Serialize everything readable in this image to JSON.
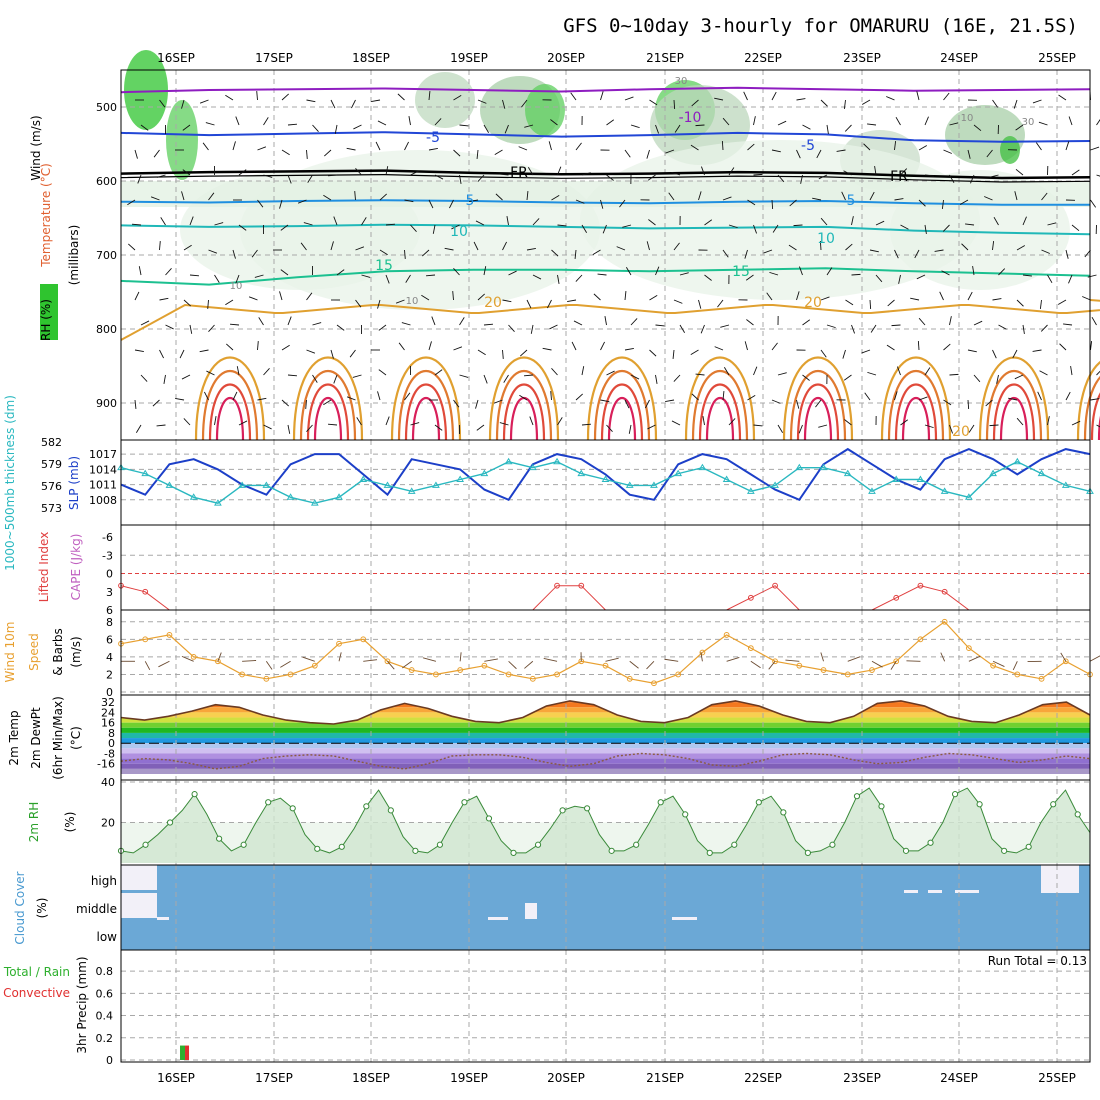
{
  "title": "GFS 0~10day 3-hourly for OMARURU (16E, 21.5S)",
  "chart_data": [
    {
      "type": "line",
      "panel": "upper-air",
      "x_labels": [
        "16SEP",
        "17SEP",
        "18SEP",
        "19SEP",
        "20SEP",
        "21SEP",
        "22SEP",
        "23SEP",
        "24SEP",
        "25SEP"
      ],
      "ylabel_parts": [
        "RH (%)",
        "Temperature (°C)",
        "Wind (m/s)",
        "(millibars)"
      ],
      "ylim": [
        950,
        450
      ],
      "y_ticks": [
        "500",
        "600",
        "700",
        "800",
        "900"
      ],
      "isotherms": [
        {
          "label": "-10",
          "color": "#8e1dc0",
          "values": [
            480,
            477,
            476,
            475,
            477,
            479,
            476,
            474,
            476,
            478,
            477,
            476
          ]
        },
        {
          "label": "-5",
          "color": "#2146d6",
          "values": [
            535,
            538,
            536,
            534,
            537,
            540,
            538,
            535,
            537,
            545,
            547,
            546
          ]
        },
        {
          "label": "FR",
          "color": "#000000",
          "values": [
            590,
            588,
            587,
            586,
            589,
            591,
            590,
            588,
            589,
            593,
            596,
            595
          ]
        },
        {
          "label": "5",
          "color": "#1f8fe0",
          "values": [
            628,
            629,
            627,
            626,
            627,
            629,
            630,
            628,
            627,
            630,
            632,
            632
          ]
        },
        {
          "label": "10",
          "color": "#20b8b8",
          "values": [
            660,
            662,
            661,
            659,
            660,
            662,
            664,
            663,
            662,
            667,
            670,
            672
          ]
        },
        {
          "label": "15",
          "color": "#1cc090",
          "values": [
            735,
            740,
            730,
            722,
            720,
            720,
            722,
            720,
            718,
            722,
            725,
            728
          ]
        }
      ],
      "contour_labels": [
        "-10",
        "-5",
        "5",
        "10",
        "15",
        "20",
        "FR",
        "30",
        "10",
        "10",
        "20"
      ]
    },
    {
      "type": "line",
      "panel": "thickness-slp",
      "ylabel_left": "1000~500mb thickness (dm)",
      "ylabel_right": "SLP (mb)",
      "left_ticks": [
        "582",
        "579",
        "576",
        "573"
      ],
      "right_ticks": [
        "1017",
        "1014",
        "1011",
        "1008"
      ],
      "series": [
        {
          "name": "SLP (mb)",
          "color": "#1c3fc8",
          "values": [
            1011,
            1009,
            1015,
            1016,
            1014,
            1011,
            1009,
            1015,
            1017,
            1017,
            1013,
            1009,
            1016,
            1015,
            1014,
            1010,
            1008,
            1015,
            1017,
            1016,
            1013,
            1009,
            1008,
            1015,
            1017,
            1016,
            1013,
            1010,
            1008,
            1015,
            1018,
            1015,
            1012,
            1010,
            1016,
            1018,
            1016,
            1013,
            1016,
            1018,
            1017
          ]
        },
        {
          "name": "thickness (dm)",
          "color": "#2ab8c0",
          "values": [
            579,
            578,
            576,
            574,
            573,
            576,
            576,
            574,
            573,
            574,
            577,
            576,
            575,
            576,
            577,
            578,
            580,
            579,
            580,
            578,
            577,
            576,
            576,
            578,
            579,
            577,
            575,
            576,
            579,
            579,
            578,
            575,
            577,
            577,
            575,
            574,
            578,
            580,
            578,
            576,
            575
          ]
        }
      ]
    },
    {
      "type": "line",
      "panel": "stability",
      "ylabel_left": "Lifted Index",
      "ylabel_right": "CAPE (J/kg)",
      "left_ticks": [
        "-6",
        "-3",
        "0",
        "3",
        "6"
      ],
      "series": [
        {
          "name": "Lifted Index",
          "color": "#e04040",
          "values": [
            2,
            3,
            6,
            6,
            6,
            6,
            6,
            6,
            6,
            6,
            6,
            6,
            6,
            6,
            6,
            6,
            6,
            6,
            2,
            2,
            6,
            6,
            6,
            6,
            6,
            6,
            4,
            2,
            6,
            6,
            6,
            6,
            4,
            2,
            3,
            6,
            6,
            6,
            6,
            6,
            6
          ]
        }
      ]
    },
    {
      "type": "line",
      "panel": "wind10m",
      "ylabel": "10m Wind Speed (m/s) & Barbs",
      "left_ticks": [
        "8",
        "6",
        "4",
        "2",
        "0"
      ],
      "ylim": [
        0,
        9
      ],
      "series": [
        {
          "name": "10m Wind Speed",
          "color": "#e8a030",
          "values": [
            5.5,
            6.0,
            6.5,
            4.0,
            3.5,
            2.0,
            1.5,
            2.0,
            3.0,
            5.5,
            6.0,
            3.5,
            2.5,
            2.0,
            2.5,
            3.0,
            2.0,
            1.5,
            2.0,
            3.5,
            3.0,
            1.5,
            1.0,
            2.0,
            4.5,
            6.5,
            5.0,
            3.5,
            3.0,
            2.5,
            2.0,
            2.5,
            3.5,
            6.0,
            8.0,
            5.0,
            3.0,
            2.0,
            1.5,
            3.5,
            2.0
          ]
        }
      ]
    },
    {
      "type": "area",
      "panel": "temp2m",
      "ylabel": "2m Temp 2m DewPt (6hr Min/Max) (°C)",
      "left_ticks": [
        "32",
        "24",
        "16",
        "8",
        "0",
        "-8",
        "-16"
      ],
      "ylim": [
        -24,
        36
      ],
      "series": [
        {
          "name": "2m Temp",
          "color": "#6a3a22",
          "values": [
            20,
            18,
            21,
            25,
            30,
            28,
            22,
            18,
            16,
            15,
            18,
            26,
            31,
            27,
            21,
            17,
            16,
            20,
            29,
            33,
            30,
            22,
            17,
            16,
            20,
            30,
            33,
            29,
            22,
            17,
            16,
            21,
            31,
            33,
            29,
            21,
            17,
            16,
            22,
            30,
            32,
            22
          ]
        },
        {
          "name": "2m DewPt",
          "color": "#8a5a40",
          "values": [
            -14,
            -12,
            -13,
            -16,
            -20,
            -18,
            -12,
            -10,
            -9,
            -10,
            -14,
            -18,
            -20,
            -16,
            -10,
            -9,
            -9,
            -11,
            -15,
            -18,
            -16,
            -10,
            -8,
            -9,
            -12,
            -17,
            -18,
            -14,
            -9,
            -8,
            -9,
            -13,
            -16,
            -15,
            -11,
            -8,
            -9,
            -12,
            -15,
            -13,
            -10,
            -12
          ]
        }
      ]
    },
    {
      "type": "area",
      "panel": "rh2m",
      "ylabel": "2m RH (%)",
      "left_ticks": [
        "40",
        "20"
      ],
      "ylim": [
        0,
        40
      ],
      "series": [
        {
          "name": "2m RH",
          "color": "#3a8a3a",
          "values": [
            6,
            5,
            9,
            14,
            20,
            26,
            34,
            24,
            12,
            6,
            9,
            20,
            30,
            32,
            27,
            14,
            7,
            5,
            8,
            17,
            28,
            36,
            26,
            13,
            6,
            5,
            9,
            20,
            30,
            33,
            22,
            11,
            5,
            5,
            9,
            17,
            26,
            28,
            27,
            14,
            6,
            6,
            9,
            19,
            30,
            33,
            24,
            11,
            5,
            5,
            9,
            19,
            30,
            33,
            25,
            11,
            5,
            6,
            9,
            20,
            33,
            37,
            28,
            12,
            6,
            6,
            10,
            20,
            34,
            37,
            29,
            12,
            6,
            5,
            8,
            20,
            29,
            36,
            24,
            15
          ]
        }
      ]
    },
    {
      "type": "bar",
      "panel": "cloud",
      "ylabel": "Cloud Cover (%)",
      "levels": [
        "high",
        "middle",
        "low"
      ],
      "background_color": "#6ba8d6"
    },
    {
      "type": "bar",
      "panel": "precip",
      "ylabel_left": "3hr Precip (mm)",
      "legend_left": [
        "Total / Rain",
        "Convective"
      ],
      "left_ticks": [
        "0.8",
        "0.6",
        "0.4",
        "0.2",
        "0"
      ],
      "ylim": [
        0,
        0.9
      ],
      "run_total_label": "Run Total = 0.13",
      "series": [
        {
          "name": "Total / Rain",
          "color": "#2eb02e",
          "values": [
            {
              "x": 0.64,
              "v": 0.13
            }
          ]
        },
        {
          "name": "Convective",
          "color": "#e03030",
          "values": [
            {
              "x": 0.64,
              "v": 0.13
            }
          ]
        }
      ]
    }
  ]
}
